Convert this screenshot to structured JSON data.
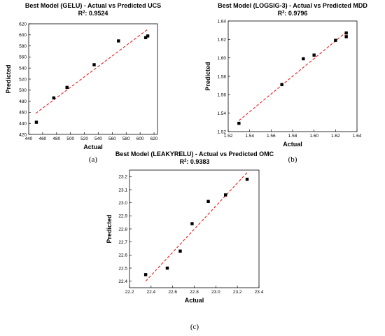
{
  "colors": {
    "points": "#000000",
    "fit_line": "#e02020",
    "axes": "#000000"
  },
  "chart_data": [
    {
      "type": "scatter",
      "title": "Best Model (GELU) - Actual vs Predicted UCS",
      "subtitle_prefix": "R",
      "subtitle_sup": "2",
      "subtitle_value": ": 0.9524",
      "xlabel": "Actual",
      "ylabel": "Predicted",
      "xlim": [
        440,
        625
      ],
      "ylim": [
        420,
        620
      ],
      "xticks": [
        440,
        460,
        480,
        500,
        520,
        540,
        560,
        580,
        600,
        620
      ],
      "yticks": [
        420,
        440,
        460,
        480,
        500,
        520,
        540,
        560,
        580,
        600,
        620
      ],
      "tick_decimals": 0,
      "points": [
        [
          451,
          442
        ],
        [
          476,
          486
        ],
        [
          495,
          505
        ],
        [
          534,
          546
        ],
        [
          569,
          589
        ],
        [
          608,
          595
        ],
        [
          611,
          598
        ]
      ],
      "fit_line": [
        [
          450,
          458
        ],
        [
          612,
          611
        ]
      ],
      "grid": false,
      "panel_label": "(a)"
    },
    {
      "type": "scatter",
      "title": "Best Model (LOGSIG-3) - Actual vs Predicted MDD",
      "subtitle_prefix": "R",
      "subtitle_sup": "2",
      "subtitle_value": ": 0.9796",
      "xlabel": "Actual",
      "ylabel": "Predicted",
      "xlim": [
        1.52,
        1.64
      ],
      "ylim": [
        1.52,
        1.64
      ],
      "xticks": [
        1.52,
        1.54,
        1.56,
        1.58,
        1.6,
        1.62,
        1.64
      ],
      "yticks": [
        1.52,
        1.54,
        1.56,
        1.58,
        1.6,
        1.62,
        1.64
      ],
      "tick_decimals": 2,
      "points": [
        [
          1.53,
          1.529
        ],
        [
          1.57,
          1.571
        ],
        [
          1.59,
          1.599
        ],
        [
          1.6,
          1.603
        ],
        [
          1.62,
          1.619
        ],
        [
          1.63,
          1.627
        ],
        [
          1.63,
          1.623
        ]
      ],
      "fit_line": [
        [
          1.53,
          1.532
        ],
        [
          1.631,
          1.629
        ]
      ],
      "grid": false,
      "panel_label": "(b)"
    },
    {
      "type": "scatter",
      "title": "Best Model (LEAKYRELU) - Actual vs Predicted OMC",
      "subtitle_prefix": "R",
      "subtitle_sup": "2",
      "subtitle_value": ": 0.9383",
      "xlabel": "Actual",
      "ylabel": "Predicted",
      "xlim": [
        22.2,
        23.4
      ],
      "ylim": [
        22.35,
        23.25
      ],
      "xticks": [
        22.2,
        22.4,
        22.6,
        22.8,
        23.0,
        23.2,
        23.4
      ],
      "yticks": [
        22.4,
        22.5,
        22.6,
        22.7,
        22.8,
        22.9,
        23.0,
        23.1,
        23.2
      ],
      "tick_decimals": 1,
      "points": [
        [
          22.35,
          22.45
        ],
        [
          22.55,
          22.5
        ],
        [
          22.67,
          22.63
        ],
        [
          22.78,
          22.84
        ],
        [
          22.93,
          23.01
        ],
        [
          23.09,
          23.06
        ],
        [
          23.29,
          23.18
        ]
      ],
      "fit_line": [
        [
          22.35,
          22.4
        ],
        [
          23.3,
          23.24
        ]
      ],
      "grid": false,
      "panel_label": "(c)"
    }
  ]
}
